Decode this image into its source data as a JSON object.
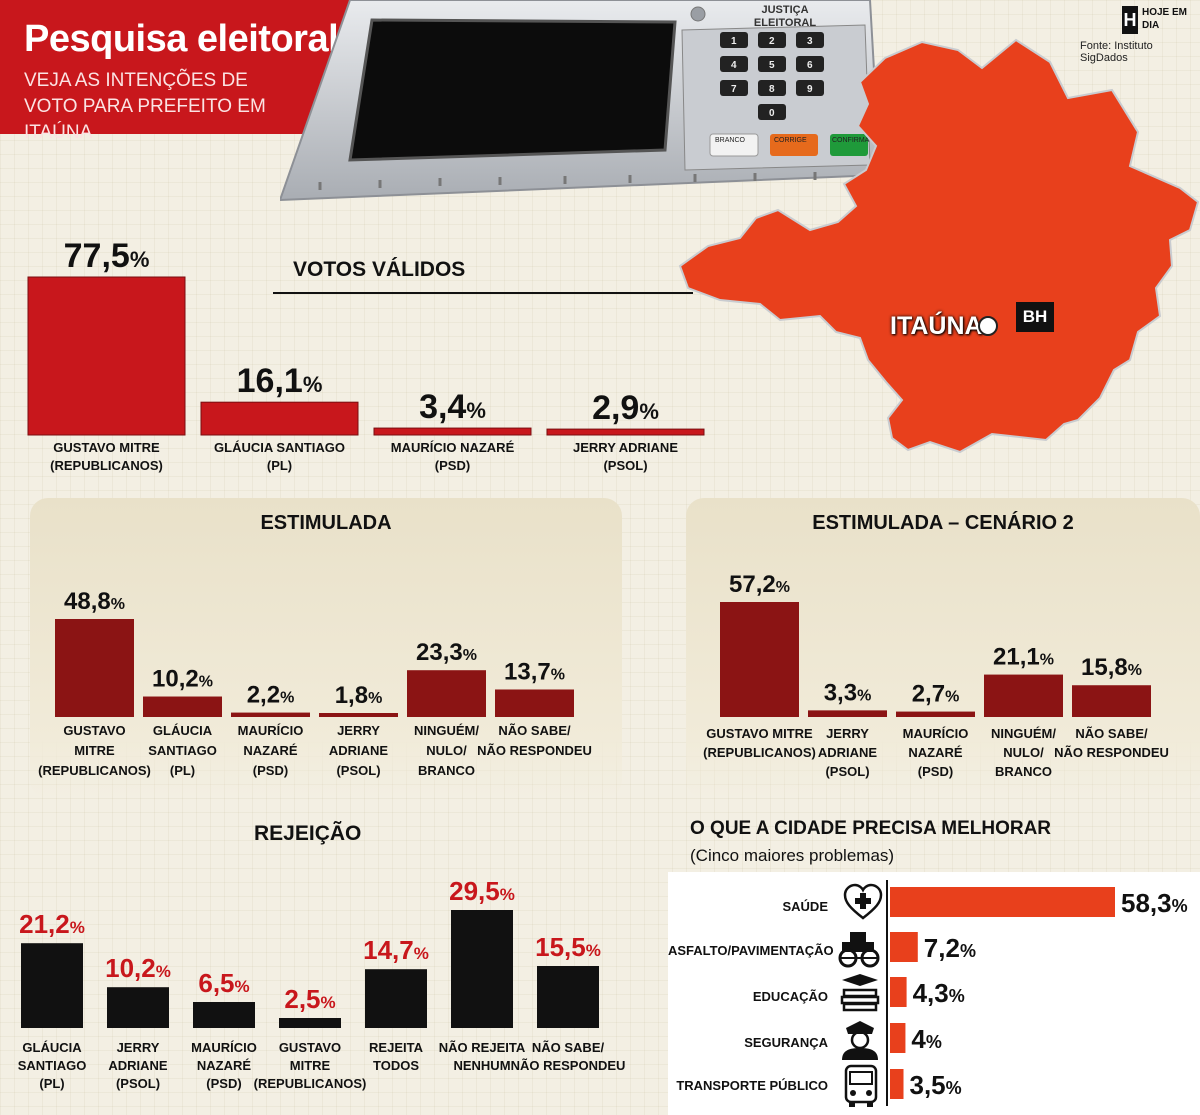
{
  "header": {
    "title": "Pesquisa eleitoral",
    "subtitle": "VEJA AS INTENÇÕES DE VOTO PARA PREFEITO EM ITAÚNA",
    "logo_letter": "H",
    "logo_text": "HOJE EM DIA",
    "source": "Fonte: Instituto SigDados"
  },
  "machine": {
    "label_line1": "JUSTIÇA",
    "label_line2": "ELEITORAL",
    "keys": [
      "1",
      "2",
      "3",
      "4",
      "5",
      "6",
      "7",
      "8",
      "9",
      "0"
    ],
    "btn_branco": "BRANCO",
    "btn_corrige": "CORRIGE",
    "btn_confirma": "CONFIRMA"
  },
  "map": {
    "city": "ITAÚNA",
    "capital": "BH"
  },
  "colors": {
    "red": "#c8171c",
    "darkred": "#8b1414",
    "black": "#111111",
    "orange": "#e8401c",
    "panel": "#e5dcc3"
  },
  "chart_data": [
    {
      "id": "votos_validos",
      "type": "bar",
      "title": "VOTOS VÁLIDOS",
      "categories": [
        [
          "GUSTAVO MITRE",
          "(REPUBLICANOS)"
        ],
        [
          "GLÁUCIA SANTIAGO",
          "(PL)"
        ],
        [
          "MAURÍCIO NAZARÉ",
          "(PSD)"
        ],
        [
          "JERRY ADRIANE",
          "(PSOL)"
        ]
      ],
      "values": [
        77.5,
        16.1,
        3.4,
        2.9
      ],
      "labels": [
        "77,5",
        "16,1",
        "3,4",
        "2,9"
      ],
      "unit": "%"
    },
    {
      "id": "estimulada",
      "type": "bar",
      "title": "ESTIMULADA",
      "categories": [
        [
          "GUSTAVO",
          "MITRE",
          "(REPUBLICANOS)"
        ],
        [
          "GLÁUCIA",
          "SANTIAGO",
          "(PL)"
        ],
        [
          "MAURÍCIO",
          "NAZARÉ",
          "(PSD)"
        ],
        [
          "JERRY",
          "ADRIANE",
          "(PSOL)"
        ],
        [
          "NINGUÉM/",
          "NULO/",
          "BRANCO"
        ],
        [
          "NÃO SABE/",
          "NÃO RESPONDEU"
        ]
      ],
      "values": [
        48.8,
        10.2,
        2.2,
        1.8,
        23.3,
        13.7
      ],
      "labels": [
        "48,8",
        "10,2",
        "2,2",
        "1,8",
        "23,3",
        "13,7"
      ],
      "unit": "%"
    },
    {
      "id": "estimulada_cenario2",
      "type": "bar",
      "title": "ESTIMULADA – CENÁRIO 2",
      "categories": [
        [
          "GUSTAVO MITRE",
          "(REPUBLICANOS)"
        ],
        [
          "JERRY",
          "ADRIANE",
          "(PSOL)"
        ],
        [
          "MAURÍCIO",
          "NAZARÉ",
          "(PSD)"
        ],
        [
          "NINGUÉM/",
          "NULO/",
          "BRANCO"
        ],
        [
          "NÃO SABE/",
          "NÃO RESPONDEU"
        ]
      ],
      "values": [
        57.2,
        3.3,
        2.7,
        21.1,
        15.8
      ],
      "labels": [
        "57,2",
        "3,3",
        "2,7",
        "21,1",
        "15,8"
      ],
      "unit": "%"
    },
    {
      "id": "rejeicao",
      "type": "bar",
      "title": "REJEIÇÃO",
      "categories": [
        [
          "GLÁUCIA",
          "SANTIAGO",
          "(PL)"
        ],
        [
          "JERRY",
          "ADRIANE",
          "(PSOL)"
        ],
        [
          "MAURÍCIO",
          "NAZARÉ",
          "(PSD)"
        ],
        [
          "GUSTAVO",
          "MITRE",
          "(REPUBLICANOS)"
        ],
        [
          "REJEITA",
          "TODOS"
        ],
        [
          "NÃO REJEITA",
          "NENHUM"
        ],
        [
          "NÃO SABE/",
          "NÃO RESPONDEU"
        ]
      ],
      "values": [
        21.2,
        10.2,
        6.5,
        2.5,
        14.7,
        29.5,
        15.5
      ],
      "labels": [
        "21,2",
        "10,2",
        "6,5",
        "2,5",
        "14,7",
        "29,5",
        "15,5"
      ],
      "unit": "%"
    },
    {
      "id": "problemas",
      "type": "bar",
      "orientation": "horizontal",
      "title": "O QUE A CIDADE PRECISA MELHORAR",
      "subtitle": "(Cinco maiores problemas)",
      "categories": [
        "SAÚDE",
        "ASFALTO/PAVIMENTAÇÃO",
        "EDUCAÇÃO",
        "SEGURANÇA",
        "TRANSPORTE PÚBLICO"
      ],
      "icons": [
        "heart-cross-icon",
        "roller-icon",
        "books-icon",
        "police-icon",
        "bus-icon"
      ],
      "values": [
        58.3,
        7.2,
        4.3,
        4,
        3.5
      ],
      "labels": [
        "58,3",
        "7,2",
        "4,3",
        "4",
        "3,5"
      ],
      "unit": "%"
    }
  ]
}
